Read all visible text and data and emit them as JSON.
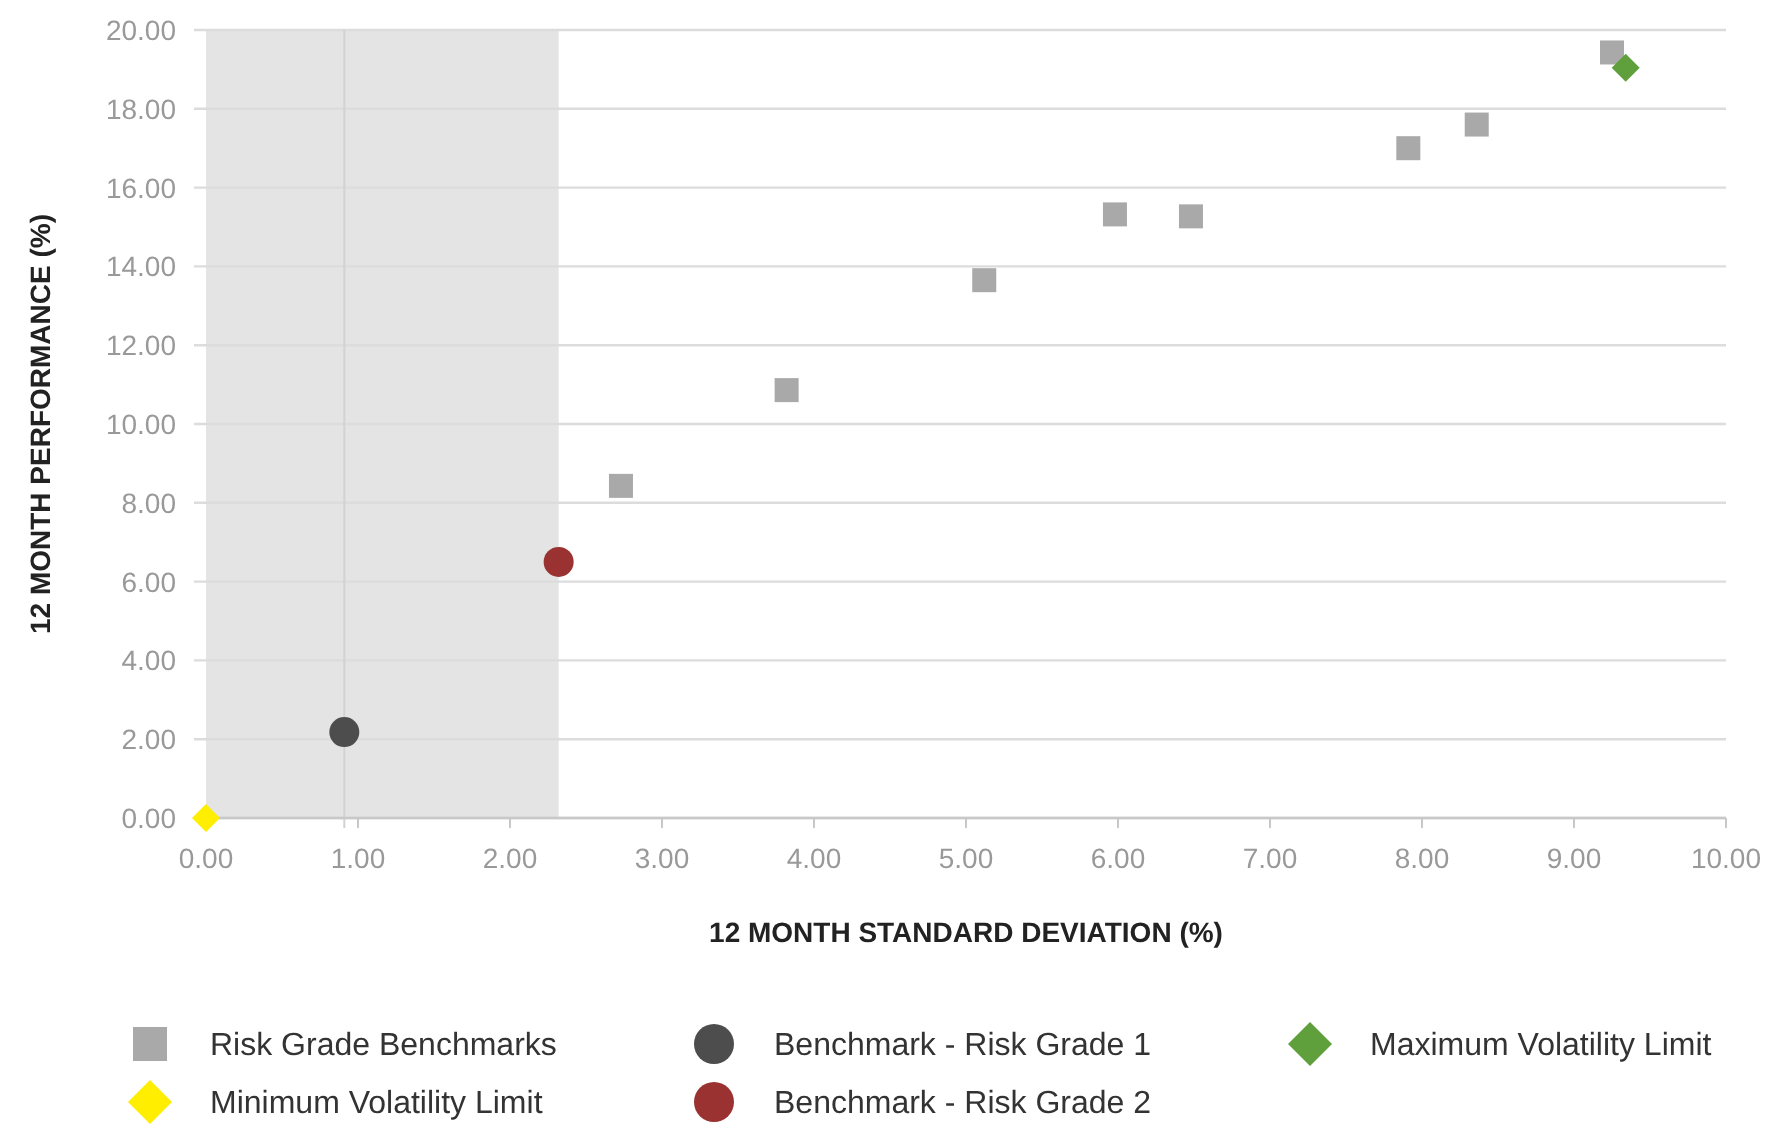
{
  "chart_data": {
    "type": "scatter",
    "xlabel": "12 MONTH STANDARD DEVIATION (%)",
    "ylabel": "12 MONTH PERFORMANCE (%)",
    "xlim": [
      0,
      10
    ],
    "ylim": [
      0,
      20
    ],
    "xticks": [
      {
        "value": 0,
        "label": "0.00"
      },
      {
        "value": 1,
        "label": "1.00"
      },
      {
        "value": 2,
        "label": "2.00"
      },
      {
        "value": 3,
        "label": "3.00"
      },
      {
        "value": 4,
        "label": "4.00"
      },
      {
        "value": 5,
        "label": "5.00"
      },
      {
        "value": 6,
        "label": "6.00"
      },
      {
        "value": 7,
        "label": "7.00"
      },
      {
        "value": 8,
        "label": "8.00"
      },
      {
        "value": 9,
        "label": "9.00"
      },
      {
        "value": 10,
        "label": "10.00"
      }
    ],
    "yticks": [
      {
        "value": 0,
        "label": "0.00"
      },
      {
        "value": 2,
        "label": "2.00"
      },
      {
        "value": 4,
        "label": "4.00"
      },
      {
        "value": 6,
        "label": "6.00"
      },
      {
        "value": 8,
        "label": "8.00"
      },
      {
        "value": 10,
        "label": "10.00"
      },
      {
        "value": 12,
        "label": "12.00"
      },
      {
        "value": 14,
        "label": "14.00"
      },
      {
        "value": 16,
        "label": "16.00"
      },
      {
        "value": 18,
        "label": "18.00"
      },
      {
        "value": 20,
        "label": "20.00"
      }
    ],
    "grid": "y",
    "legend": "bottom",
    "bands": [
      {
        "axis": "x",
        "from": 0,
        "to": 2.32,
        "color": "#e4e4e4"
      }
    ],
    "ref_lines": [
      {
        "axis": "x",
        "value": 0.91,
        "color": "#d2d2d2"
      }
    ],
    "series": [
      {
        "name": "Risk Grade Benchmarks",
        "color": "#a9a9a9",
        "marker": "square",
        "x": [
          2.73,
          3.82,
          5.12,
          5.98,
          6.48,
          7.91,
          8.36,
          9.25
        ],
        "values": [
          8.43,
          10.86,
          13.65,
          15.32,
          15.27,
          17.0,
          17.6,
          19.43
        ]
      },
      {
        "name": "Benchmark - Risk Grade 1",
        "color": "#4d4d4d",
        "marker": "circle",
        "x": [
          0.91
        ],
        "values": [
          2.18
        ]
      },
      {
        "name": "Maximum Volatility Limit",
        "color": "#5fa03c",
        "marker": "diamond",
        "x": [
          9.34
        ],
        "values": [
          19.04
        ]
      },
      {
        "name": "Minimum Volatility Limit",
        "color": "#ffee00",
        "marker": "diamond",
        "x": [
          0
        ],
        "values": [
          0
        ]
      },
      {
        "name": "Benchmark - Risk Grade 2",
        "color": "#9b3232",
        "marker": "circle",
        "x": [
          2.32
        ],
        "values": [
          6.5
        ]
      }
    ]
  }
}
